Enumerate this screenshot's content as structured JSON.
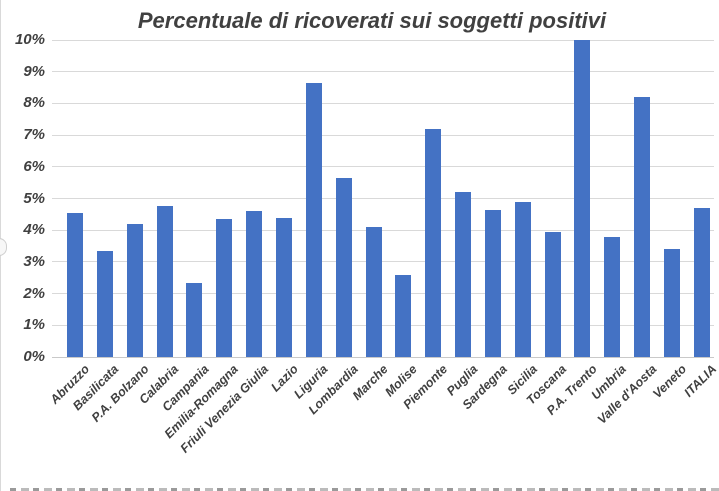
{
  "chart_data": {
    "type": "bar",
    "title": "Percentuale di ricoverati sui soggetti positivi",
    "categories": [
      "Abruzzo",
      "Basilicata",
      "P.A. Bolzano",
      "Calabria",
      "Campania",
      "Emilia-Romagna",
      "Friuli Venezia Giulia",
      "Lazio",
      "Liguria",
      "Lombardia",
      "Marche",
      "Molise",
      "Piemonte",
      "Puglia",
      "Sardegna",
      "Sicilia",
      "Toscana",
      "P.A. Trento",
      "Umbria",
      "Valle d'Aosta",
      "Veneto",
      "ITALIA"
    ],
    "values": [
      4.55,
      3.35,
      4.2,
      4.75,
      2.35,
      4.35,
      4.6,
      4.4,
      8.65,
      5.65,
      4.1,
      2.6,
      7.2,
      5.2,
      4.65,
      4.9,
      3.95,
      10.0,
      3.8,
      8.2,
      3.4,
      4.7
    ],
    "xlabel": "",
    "ylabel": "",
    "ylim": [
      0,
      10
    ],
    "ytick_labels": [
      "0%",
      "1%",
      "2%",
      "3%",
      "4%",
      "5%",
      "6%",
      "7%",
      "8%",
      "9%",
      "10%"
    ],
    "grid": "horizontal",
    "legend": "none",
    "bar_color": "#4472C4",
    "gridline_color": "#D9D9D9",
    "text_color": "#404040"
  }
}
